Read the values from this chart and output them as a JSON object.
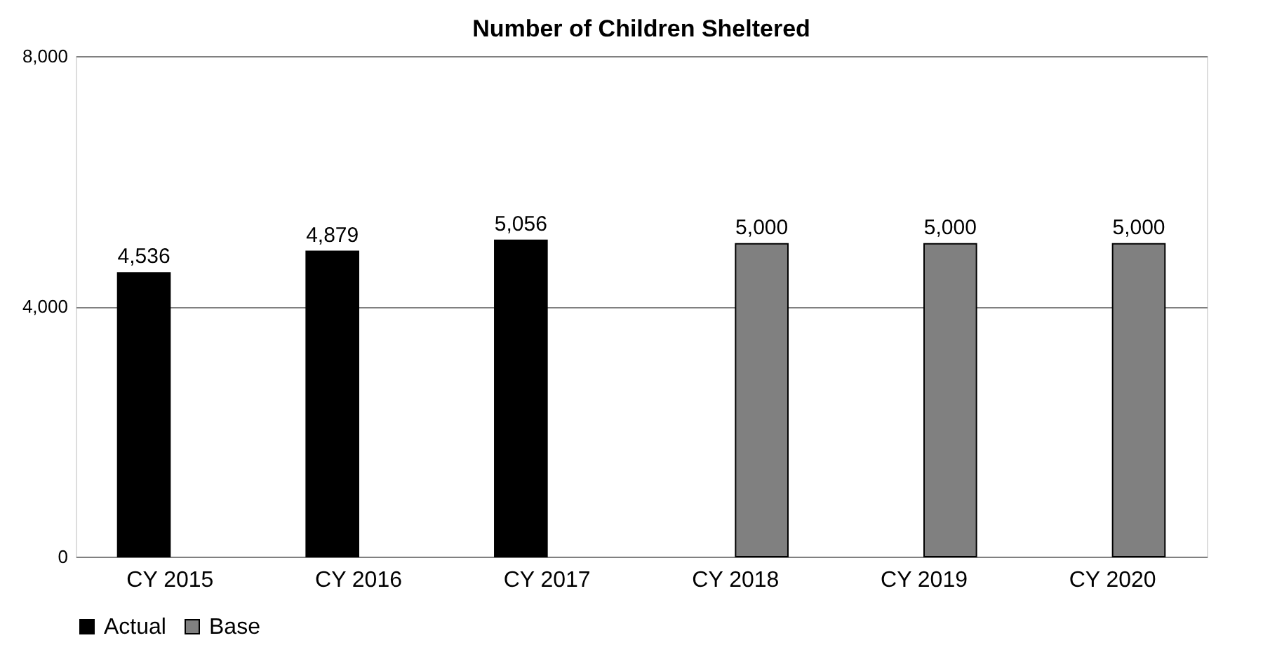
{
  "chart_data": {
    "type": "bar",
    "title": "Number of Children Sheltered",
    "categories": [
      "CY 2015",
      "CY 2016",
      "CY 2017",
      "CY 2018",
      "CY 2019",
      "CY 2020"
    ],
    "series": [
      {
        "name": "Actual",
        "color": "#000000",
        "values": [
          4536,
          4879,
          5056,
          null,
          null,
          null
        ],
        "value_labels": [
          "4,536",
          "4,879",
          "5,056",
          null,
          null,
          null
        ]
      },
      {
        "name": "Base",
        "color": "#808080",
        "values": [
          null,
          null,
          null,
          5000,
          5000,
          5000
        ],
        "value_labels": [
          null,
          null,
          null,
          "5,000",
          "5,000",
          "5,000"
        ]
      }
    ],
    "ylim": [
      0,
      8000
    ],
    "yticks": [
      {
        "value": 0,
        "label": "0"
      },
      {
        "value": 4000,
        "label": "4,000"
      },
      {
        "value": 8000,
        "label": "8,000"
      }
    ],
    "grid": "y",
    "legend": "bottom"
  }
}
